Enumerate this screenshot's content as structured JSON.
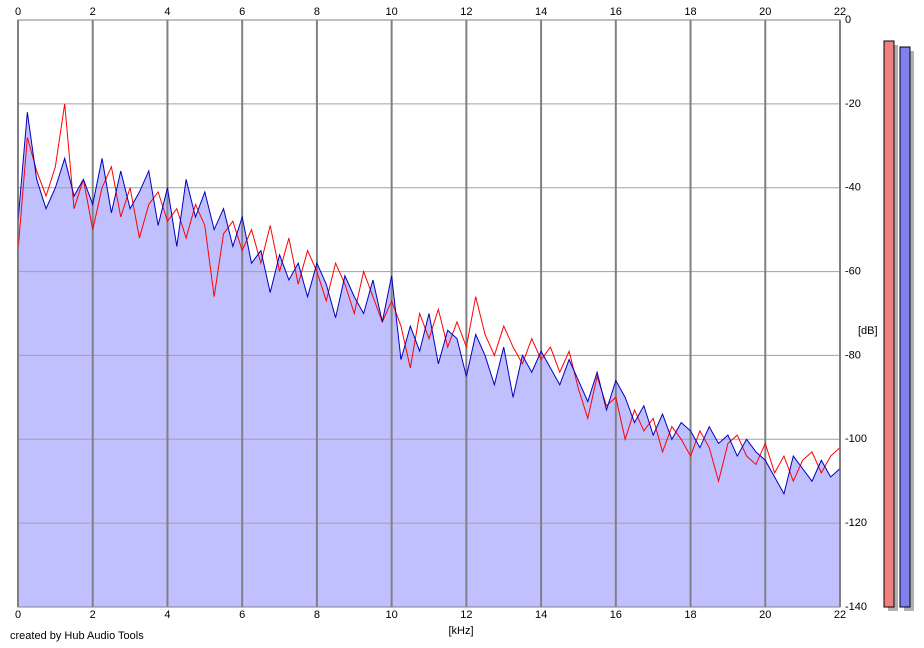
{
  "chart_data": {
    "type": "line",
    "xlabel": "[kHz]",
    "ylabel": "[dB]",
    "caption": "created by Hub Audio Tools",
    "xlim": [
      0,
      22
    ],
    "xticks": [
      0,
      2,
      4,
      6,
      8,
      10,
      12,
      14,
      16,
      18,
      20,
      22
    ],
    "ylim": [
      -140,
      0
    ],
    "yticks": [
      0,
      -20,
      -40,
      -60,
      -80,
      -100,
      -120,
      -140
    ],
    "grid": true,
    "fill_series": 1,
    "fill_color": "#c0c0ff",
    "x": [
      0,
      0.25,
      0.5,
      0.75,
      1,
      1.25,
      1.5,
      1.75,
      2,
      2.25,
      2.5,
      2.75,
      3,
      3.25,
      3.5,
      3.75,
      4,
      4.25,
      4.5,
      4.75,
      5,
      5.25,
      5.5,
      5.75,
      6,
      6.25,
      6.5,
      6.75,
      7,
      7.25,
      7.5,
      7.75,
      8,
      8.25,
      8.5,
      8.75,
      9,
      9.25,
      9.5,
      9.75,
      10,
      10.25,
      10.5,
      10.75,
      11,
      11.25,
      11.5,
      11.75,
      12,
      12.25,
      12.5,
      12.75,
      13,
      13.25,
      13.5,
      13.75,
      14,
      14.25,
      14.5,
      14.75,
      15,
      15.25,
      15.5,
      15.75,
      16,
      16.25,
      16.5,
      16.75,
      17,
      17.25,
      17.5,
      17.75,
      18,
      18.25,
      18.5,
      18.75,
      19,
      19.25,
      19.5,
      19.75,
      20,
      20.25,
      20.5,
      20.75,
      21,
      21.25,
      21.5,
      21.75,
      22
    ],
    "series": [
      {
        "color": "#ff0000",
        "values": [
          -55,
          -28,
          -36,
          -42,
          -35,
          -20,
          -45,
          -38,
          -50,
          -40,
          -35,
          -47,
          -40,
          -52,
          -44,
          -41,
          -48,
          -45,
          -52,
          -44,
          -49,
          -66,
          -51,
          -48,
          -55,
          -50,
          -58,
          -49,
          -60,
          -52,
          -63,
          -55,
          -60,
          -67,
          -58,
          -63,
          -70,
          -60,
          -66,
          -72,
          -67,
          -73,
          -83,
          -70,
          -76,
          -69,
          -78,
          -72,
          -78,
          -66,
          -75,
          -80,
          -73,
          -78,
          -82,
          -76,
          -81,
          -78,
          -84,
          -79,
          -88,
          -95,
          -85,
          -92,
          -90,
          -100,
          -93,
          -98,
          -95,
          -103,
          -97,
          -100,
          -104,
          -98,
          -102,
          -110,
          -101,
          -99,
          -104,
          -106,
          -101,
          -108,
          -104,
          -110,
          -105,
          -103,
          -108,
          -104,
          -102
        ]
      },
      {
        "color": "#0000c0",
        "values": [
          -48,
          -22,
          -38,
          -45,
          -40,
          -33,
          -42,
          -38,
          -44,
          -33,
          -46,
          -36,
          -45,
          -41,
          -36,
          -49,
          -40,
          -54,
          -38,
          -47,
          -41,
          -50,
          -45,
          -54,
          -47,
          -58,
          -55,
          -65,
          -56,
          -62,
          -58,
          -66,
          -58,
          -63,
          -71,
          -61,
          -66,
          -70,
          -62,
          -72,
          -61,
          -81,
          -73,
          -79,
          -70,
          -82,
          -74,
          -76,
          -85,
          -75,
          -80,
          -87,
          -78,
          -90,
          -80,
          -84,
          -79,
          -83,
          -87,
          -81,
          -86,
          -91,
          -84,
          -93,
          -86,
          -90,
          -96,
          -92,
          -99,
          -94,
          -100,
          -96,
          -98,
          -102,
          -97,
          -101,
          -99,
          -104,
          -100,
          -103,
          -105,
          -109,
          -113,
          -104,
          -107,
          -110,
          -105,
          -109,
          -107
        ]
      }
    ]
  }
}
